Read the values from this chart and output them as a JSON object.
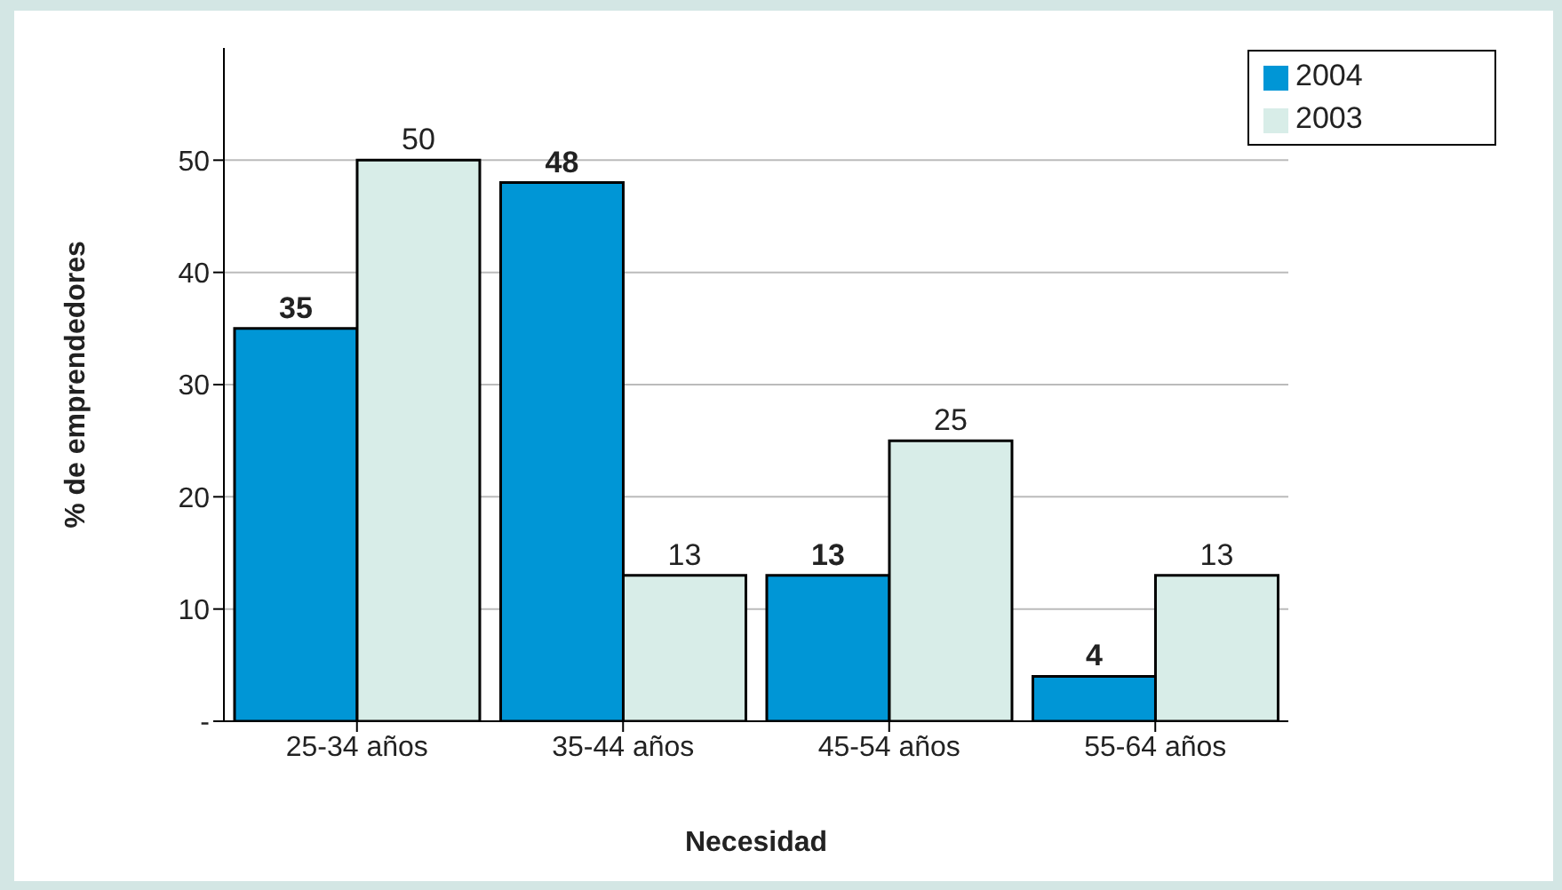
{
  "chart_data": {
    "type": "bar",
    "xlabel": "Necesidad",
    "ylabel": "% de emprendedores",
    "categories": [
      "25-34 años",
      "35-44 años",
      "45-54 años",
      "55-64 años"
    ],
    "series": [
      {
        "name": "2004",
        "color": "#0096d6",
        "values": [
          35,
          48,
          13,
          4
        ]
      },
      {
        "name": "2003",
        "color": "#d8ede8",
        "values": [
          50,
          13,
          25,
          13
        ]
      }
    ],
    "ylim": [
      0,
      60
    ],
    "yticks": [
      {
        "value": 0,
        "label": "-"
      },
      10,
      20,
      30,
      40,
      50
    ],
    "grid": "y",
    "legend": "top right",
    "data_labels": true
  }
}
